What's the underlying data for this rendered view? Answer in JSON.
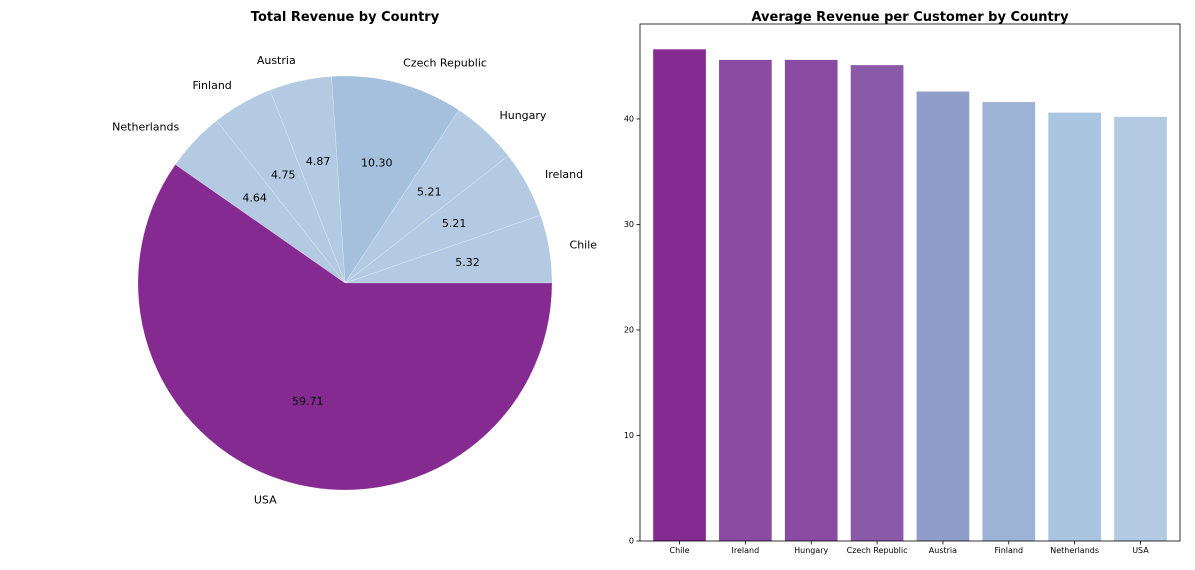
{
  "chart_data": [
    {
      "type": "pie",
      "title": "Total Revenue by Country",
      "labels": [
        "Chile",
        "Ireland",
        "Hungary",
        "Czech Republic",
        "Austria",
        "Finland",
        "Netherlands",
        "USA"
      ],
      "values": [
        5.32,
        5.21,
        5.21,
        10.3,
        4.87,
        4.75,
        4.64,
        59.71
      ],
      "value_labels": [
        "5.32",
        "5.21",
        "5.21",
        "10.30",
        "4.87",
        "4.75",
        "4.64",
        "59.71"
      ],
      "start_angle_deg": 0,
      "direction": "counterclockwise",
      "colors": [
        "#b3cae2",
        "#b3cae2",
        "#b3cae2",
        "#a4c0dd",
        "#b3cae2",
        "#b3cae2",
        "#b3cae2",
        "#852a91"
      ]
    },
    {
      "type": "bar",
      "title": "Average Revenue per Customer by Country",
      "categories": [
        "Chile",
        "Ireland",
        "Hungary",
        "Czech Republic",
        "Austria",
        "Finland",
        "Netherlands",
        "USA"
      ],
      "values": [
        46.6,
        45.6,
        45.6,
        45.1,
        42.6,
        41.6,
        40.6,
        40.2
      ],
      "xlabel": "",
      "ylabel": "",
      "ylim": [
        0,
        49
      ],
      "yticks": [
        "0",
        "10",
        "20",
        "30",
        "40"
      ],
      "colors": [
        "#852a91",
        "#8a4ba2",
        "#8a4ba2",
        "#8a59a8",
        "#8f9ec8",
        "#9cb3d6",
        "#aac5df",
        "#b3cae2"
      ],
      "grid": false
    }
  ]
}
